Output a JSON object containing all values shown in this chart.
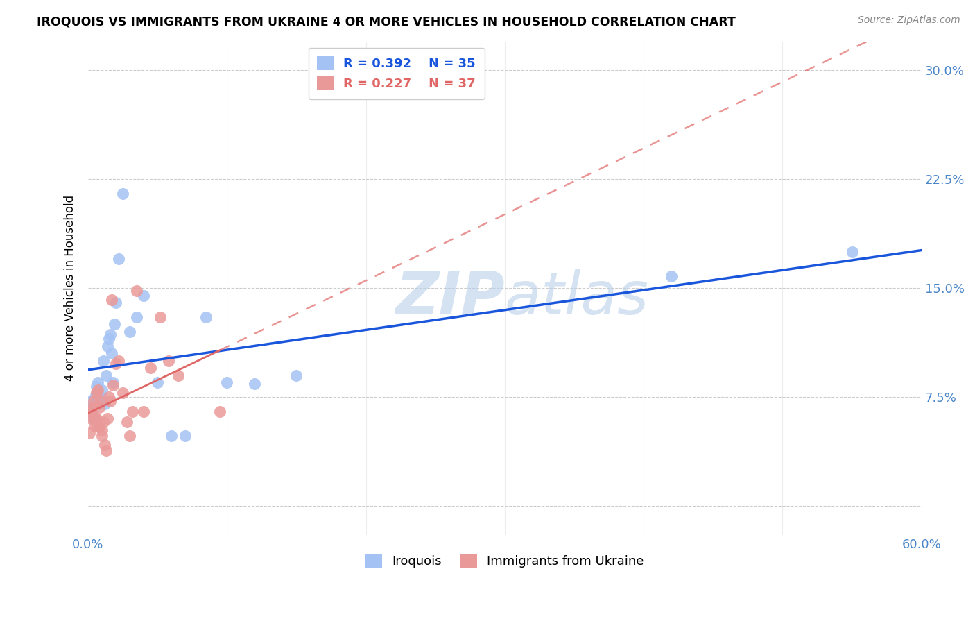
{
  "title": "IROQUOIS VS IMMIGRANTS FROM UKRAINE 4 OR MORE VEHICLES IN HOUSEHOLD CORRELATION CHART",
  "source": "Source: ZipAtlas.com",
  "ylabel": "4 or more Vehicles in Household",
  "xlim": [
    0.0,
    0.6
  ],
  "ylim": [
    -0.02,
    0.32
  ],
  "yticks": [
    0.0,
    0.075,
    0.15,
    0.225,
    0.3
  ],
  "ytick_labels": [
    "",
    "7.5%",
    "15.0%",
    "22.5%",
    "30.0%"
  ],
  "legend_blue_r": "R = 0.392",
  "legend_blue_n": "N = 35",
  "legend_pink_r": "R = 0.227",
  "legend_pink_n": "N = 37",
  "label_blue": "Iroquois",
  "label_pink": "Immigrants from Ukraine",
  "blue_color": "#a4c2f4",
  "pink_color": "#ea9999",
  "line_blue_color": "#1a56db",
  "line_pink_color": "#e06666",
  "watermark_color": "#b8cfe8",
  "iroquois_x": [
    0.001,
    0.002,
    0.003,
    0.004,
    0.005,
    0.006,
    0.006,
    0.007,
    0.008,
    0.009,
    0.01,
    0.011,
    0.012,
    0.013,
    0.014,
    0.015,
    0.016,
    0.017,
    0.018,
    0.019,
    0.02,
    0.022,
    0.025,
    0.03,
    0.035,
    0.04,
    0.05,
    0.06,
    0.07,
    0.085,
    0.1,
    0.12,
    0.15,
    0.42,
    0.55
  ],
  "iroquois_y": [
    0.068,
    0.072,
    0.065,
    0.06,
    0.075,
    0.078,
    0.082,
    0.085,
    0.07,
    0.075,
    0.08,
    0.1,
    0.07,
    0.09,
    0.11,
    0.115,
    0.118,
    0.105,
    0.085,
    0.125,
    0.14,
    0.17,
    0.215,
    0.12,
    0.13,
    0.145,
    0.085,
    0.048,
    0.048,
    0.13,
    0.085,
    0.084,
    0.09,
    0.158,
    0.175
  ],
  "ukraine_x": [
    0.001,
    0.002,
    0.002,
    0.003,
    0.004,
    0.005,
    0.005,
    0.006,
    0.006,
    0.007,
    0.007,
    0.008,
    0.008,
    0.009,
    0.01,
    0.01,
    0.011,
    0.012,
    0.013,
    0.014,
    0.015,
    0.016,
    0.017,
    0.018,
    0.02,
    0.022,
    0.025,
    0.028,
    0.03,
    0.032,
    0.035,
    0.04,
    0.045,
    0.052,
    0.058,
    0.065,
    0.095
  ],
  "ukraine_y": [
    0.05,
    0.065,
    0.06,
    0.068,
    0.072,
    0.06,
    0.055,
    0.078,
    0.06,
    0.08,
    0.055,
    0.068,
    0.055,
    0.072,
    0.052,
    0.048,
    0.058,
    0.042,
    0.038,
    0.06,
    0.075,
    0.072,
    0.142,
    0.083,
    0.098,
    0.1,
    0.078,
    0.058,
    0.048,
    0.065,
    0.148,
    0.065,
    0.095,
    0.13,
    0.1,
    0.09,
    0.065
  ]
}
